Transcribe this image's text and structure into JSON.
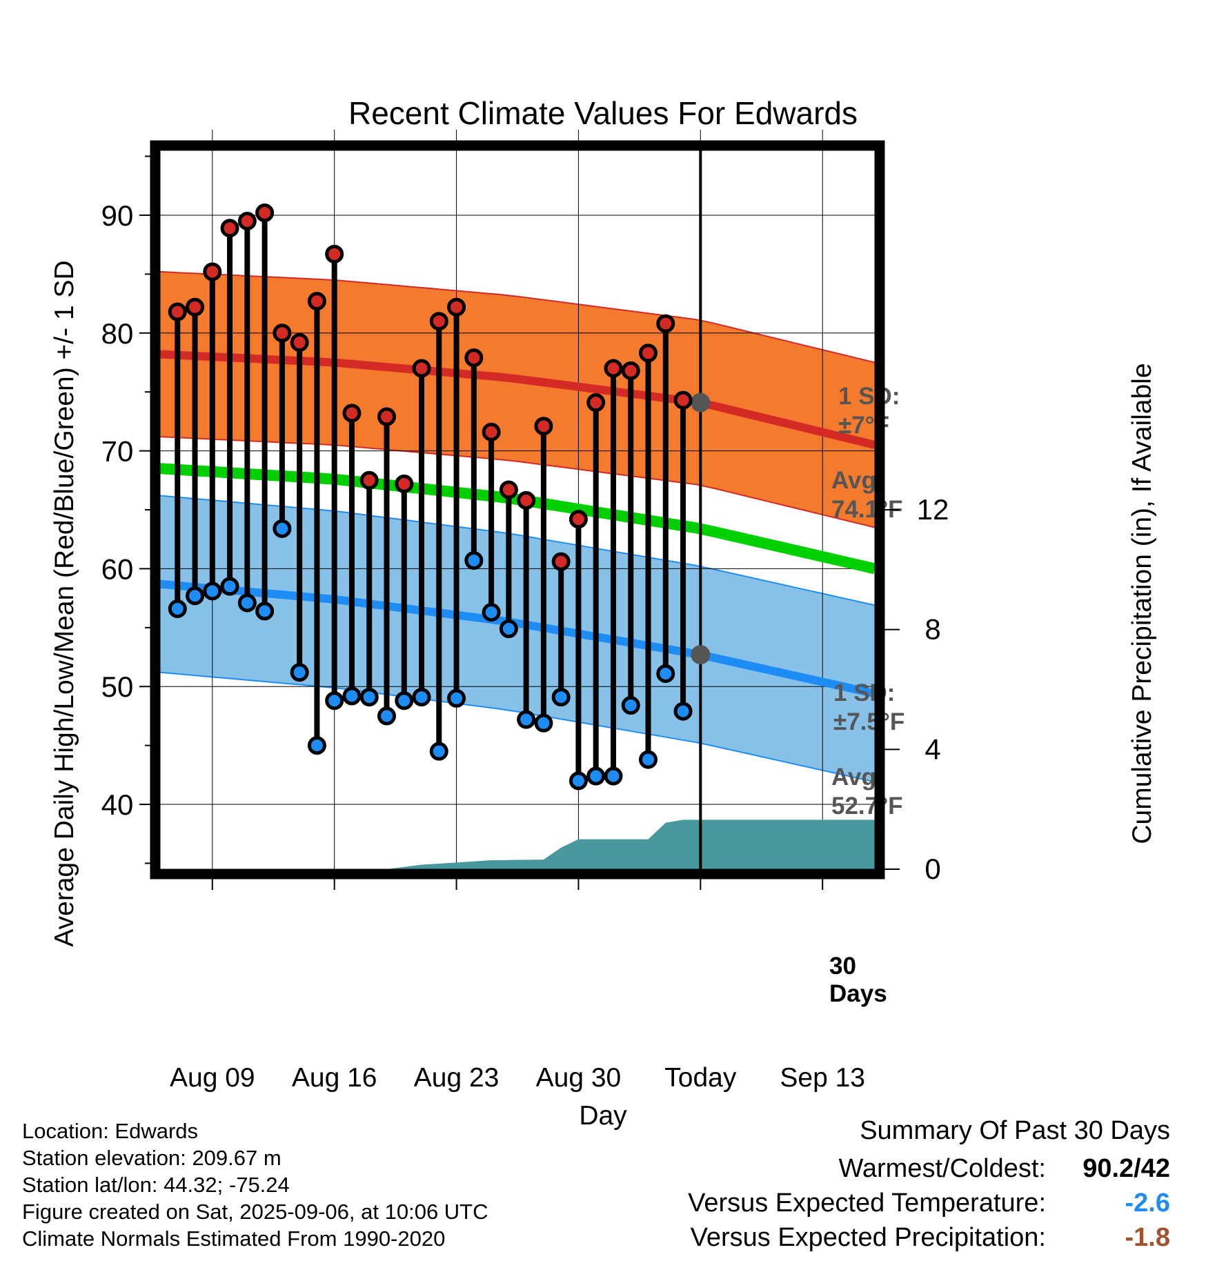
{
  "chart_data": {
    "type": "line",
    "title": "Recent Climate Values For Edwards",
    "xlabel": "Day",
    "ylabel": "Average Daily High/Low/Mean (Red/Blue/Green) +/- 1 SD",
    "y2label": "Cumulative Precipitation (in), If Available",
    "x_ticks": [
      "Aug 09",
      "Aug 16",
      "Aug 23",
      "Aug 30",
      "Today",
      "Sep 13"
    ],
    "y_ticks": [
      "90",
      "80",
      "70",
      "60",
      "50",
      "40"
    ],
    "y2_ticks": [
      "12",
      "8",
      "4",
      "0"
    ],
    "ylim": [
      34.5,
      95.5
    ],
    "y2lim": [
      0,
      24
    ],
    "xlim_days": [
      "2025-08-06",
      "2025-09-16"
    ],
    "today": "2025-09-06",
    "daily_temps": {
      "dates": [
        "2025-08-07",
        "2025-08-08",
        "2025-08-09",
        "2025-08-10",
        "2025-08-11",
        "2025-08-12",
        "2025-08-13",
        "2025-08-14",
        "2025-08-15",
        "2025-08-16",
        "2025-08-17",
        "2025-08-18",
        "2025-08-19",
        "2025-08-20",
        "2025-08-21",
        "2025-08-22",
        "2025-08-23",
        "2025-08-24",
        "2025-08-25",
        "2025-08-26",
        "2025-08-27",
        "2025-08-28",
        "2025-08-29",
        "2025-08-30",
        "2025-08-31",
        "2025-09-01",
        "2025-09-02",
        "2025-09-03",
        "2025-09-04",
        "2025-09-05"
      ],
      "high": [
        81.8,
        82.2,
        85.2,
        88.9,
        89.5,
        90.2,
        80.0,
        79.2,
        82.7,
        86.7,
        73.2,
        67.5,
        72.9,
        67.2,
        77.0,
        81.0,
        82.2,
        77.9,
        71.6,
        66.7,
        65.8,
        72.1,
        60.6,
        64.2,
        74.1,
        77.0,
        76.8,
        78.3,
        80.8,
        74.3
      ],
      "low": [
        56.6,
        57.7,
        58.1,
        58.5,
        57.1,
        56.4,
        63.4,
        51.2,
        45.0,
        48.8,
        49.2,
        49.1,
        47.5,
        48.8,
        49.1,
        44.5,
        49.0,
        60.7,
        56.3,
        54.9,
        47.2,
        46.9,
        49.1,
        42.0,
        42.4,
        42.4,
        48.4,
        43.8,
        51.1,
        47.9
      ]
    },
    "normals": {
      "dates": [
        "2025-08-06",
        "2025-08-16",
        "2025-08-26",
        "2025-09-06",
        "2025-09-16"
      ],
      "avg_high": [
        78.2,
        77.5,
        76.2,
        74.1,
        70.5
      ],
      "avg_high_sd": 7,
      "avg_mean": [
        68.5,
        67.6,
        66.0,
        63.4,
        60.0
      ],
      "avg_low": [
        58.7,
        57.4,
        55.5,
        52.7,
        49.4
      ],
      "avg_low_sd": 7.5
    },
    "cumulative_precip": {
      "dates": [
        "2025-08-06",
        "2025-08-19",
        "2025-08-21",
        "2025-08-23",
        "2025-08-25",
        "2025-08-28",
        "2025-08-29",
        "2025-08-30",
        "2025-09-03",
        "2025-09-04",
        "2025-09-05",
        "2025-09-16"
      ],
      "values": [
        0,
        0,
        0.15,
        0.22,
        0.3,
        0.32,
        0.72,
        1.0,
        1.0,
        1.55,
        1.65,
        1.65
      ]
    },
    "annotations": {
      "high_sd_label": "1 SD:",
      "high_sd_value": "±7°F",
      "high_avg_label": "Avg:",
      "high_avg_value": "74.1°F",
      "low_sd_label": "1 SD:",
      "low_sd_value": "±7.5°F",
      "low_avg_label": "Avg:",
      "low_avg_value": "52.7°F",
      "days_label_1": "30",
      "days_label_2": "Days"
    },
    "colors": {
      "high_band": "#f47b2e",
      "high_line": "#d42a26",
      "mean_line": "#00d000",
      "low_band": "#87c1e8",
      "low_line": "#1e8cf5",
      "precip": "#47999e",
      "high_dot": "#d42a26",
      "low_dot": "#1e8cf5",
      "avg_dot": "#555555",
      "annotation_text": "#555555"
    }
  },
  "footer": {
    "location": "Location: Edwards",
    "elevation": "Station elevation: 209.67 m",
    "latlon": "Station lat/lon: 44.32; -75.24",
    "created": "Figure created on Sat, 2025-09-06, at 10:06 UTC",
    "normals": "Climate Normals Estimated From 1990-2020"
  },
  "summary": {
    "title": "Summary Of Past 30 Days",
    "warmest_label": "Warmest/Coldest:",
    "warmest_value": "90.2/42",
    "temp_label": "Versus Expected Temperature:",
    "temp_value": "-2.6",
    "temp_color": "#1e8cf5",
    "precip_label": "Versus Expected Precipitation:",
    "precip_value": "-1.8",
    "precip_color": "#a0522d"
  }
}
